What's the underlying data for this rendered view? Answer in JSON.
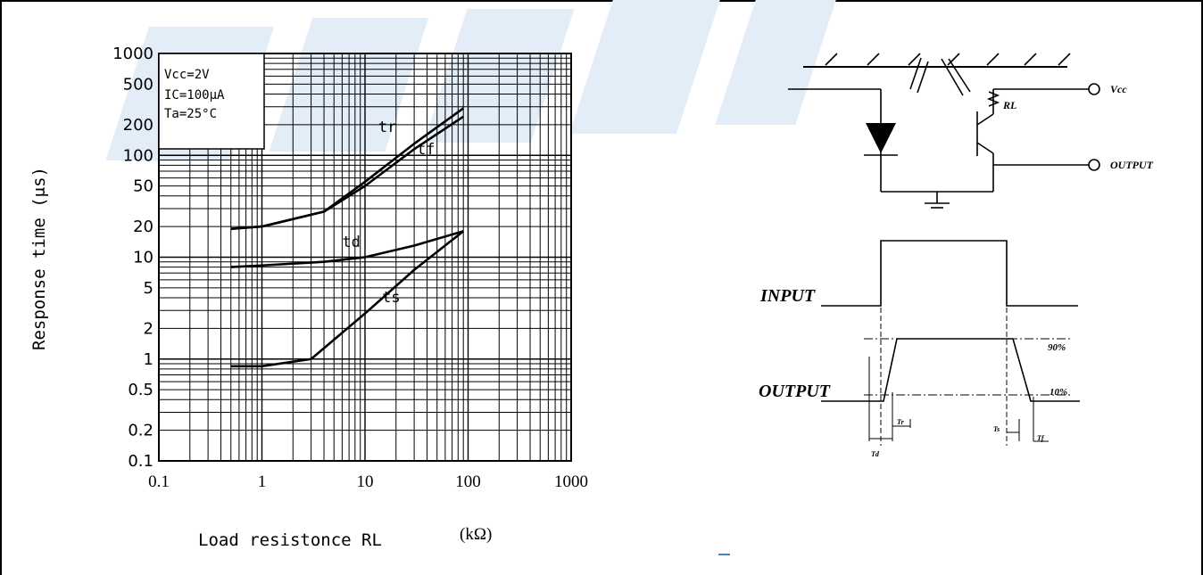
{
  "chart_data": {
    "type": "line",
    "xscale": "log",
    "yscale": "log",
    "xlim": [
      0.1,
      1000
    ],
    "ylim": [
      0.1,
      1000
    ],
    "grid": true,
    "xlabel": "Load resistonce RL",
    "xlabel_unit": "(kΩ)",
    "ylabel": "Response time (μs)",
    "x_ticks": [
      "0.1",
      "1",
      "10",
      "100",
      "1000"
    ],
    "y_ticks": [
      {
        "v": 1000,
        "label": "1000"
      },
      {
        "v": 500,
        "label": "500"
      },
      {
        "v": 200,
        "label": "200"
      },
      {
        "v": 100,
        "label": "100"
      },
      {
        "v": 50,
        "label": "50"
      },
      {
        "v": 20,
        "label": "20"
      },
      {
        "v": 10,
        "label": "10"
      },
      {
        "v": 5,
        "label": "5"
      },
      {
        "v": 2,
        "label": "2"
      },
      {
        "v": 1,
        "label": "1"
      },
      {
        "v": 0.5,
        "label": "0.5"
      },
      {
        "v": 0.2,
        "label": "0.2"
      },
      {
        "v": 0.1,
        "label": "0.1"
      }
    ],
    "conditions": [
      "Vcc=2V",
      "IC=100μA",
      "Ta=25°C"
    ],
    "series": [
      {
        "name": "tr",
        "x": [
          0.5,
          1,
          4,
          10,
          30,
          90
        ],
        "y": [
          19,
          20,
          28,
          55,
          130,
          290
        ]
      },
      {
        "name": "tf",
        "x": [
          0.5,
          1,
          4,
          10,
          30,
          90
        ],
        "y": [
          19,
          20,
          28,
          50,
          115,
          240
        ]
      },
      {
        "name": "td",
        "x": [
          0.5,
          1,
          4,
          10,
          30,
          90
        ],
        "y": [
          8,
          8.3,
          9,
          10,
          13,
          18
        ]
      },
      {
        "name": "ts",
        "x": [
          0.5,
          1,
          3,
          10,
          30,
          90
        ],
        "y": [
          0.85,
          0.85,
          1.0,
          2.8,
          7.5,
          18
        ]
      }
    ],
    "curve_labels": [
      {
        "series": "tr",
        "text": "tr"
      },
      {
        "series": "tf",
        "text": "tf"
      },
      {
        "series": "td",
        "text": "td"
      },
      {
        "series": "ts",
        "text": "ts"
      }
    ]
  },
  "schematic": {
    "vcc_label": "Vcc",
    "rl_label": "RL",
    "output_label": "OUTPUT"
  },
  "waveform": {
    "input_label": "INPUT",
    "output_label": "OUTPUT",
    "pct_90": "90%",
    "pct_10": "10%",
    "td_label": "Td",
    "tr_label": "Tr",
    "ts_label": "Ts",
    "tf_label": "Tf"
  },
  "colors": {
    "line": "#000000",
    "watermark": "#e6eff8"
  }
}
